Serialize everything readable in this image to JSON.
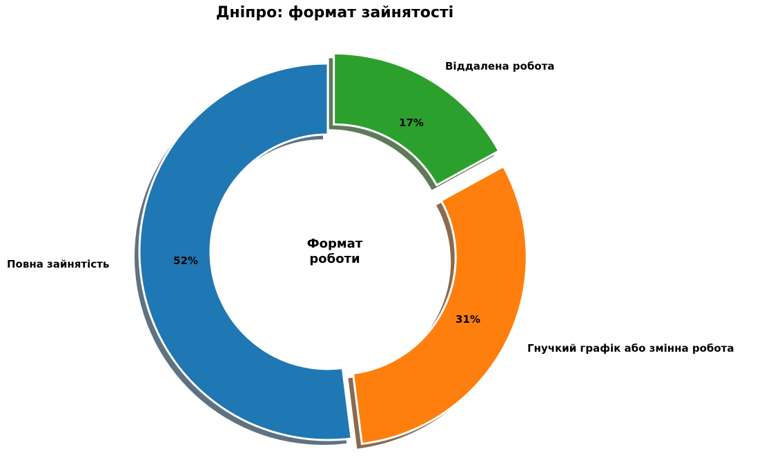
{
  "chart_data": {
    "type": "pie",
    "variant": "donut",
    "title": "Дніпро: формат зайнятості",
    "center_label": "Формат\nроботи",
    "center_label_lines": [
      "Формат",
      "роботи"
    ],
    "categories": [
      "Повна зайнятість",
      "Гнучкий графік або змінна робота",
      "Віддалена робота"
    ],
    "values": [
      52,
      31,
      17
    ],
    "value_labels": [
      "52%",
      "31%",
      "17%"
    ],
    "colors": [
      "#1f77b4",
      "#ff7f0e",
      "#2ca02c"
    ],
    "exploded": [
      false,
      true,
      true
    ],
    "start_angle": 90,
    "shadow": true
  },
  "title": "Дніпро: формат зайнятості",
  "center": {
    "line1": "Формат",
    "line2": "роботи"
  },
  "slices": [
    {
      "label": "Повна зайнятість",
      "pct": "52%",
      "color": "#1f77b4"
    },
    {
      "label": "Гнучкий графік або змінна робота",
      "pct": "31%",
      "color": "#ff7f0e"
    },
    {
      "label": "Віддалена робота",
      "pct": "17%",
      "color": "#2ca02c"
    }
  ]
}
